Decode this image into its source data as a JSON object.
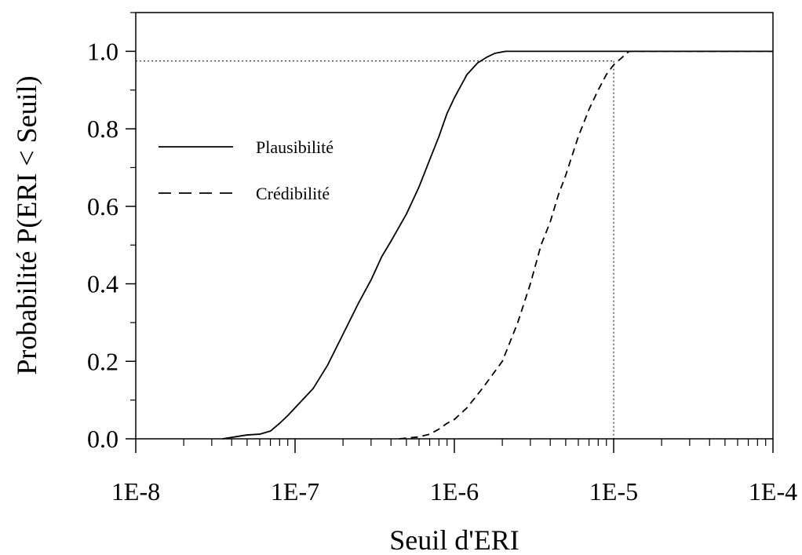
{
  "chart_data": {
    "type": "line",
    "title": "",
    "xlabel": "Seuil d'ERI",
    "ylabel": "Probabilité P(ERI < Seuil)",
    "xscale": "log",
    "xlim": [
      1e-08,
      0.0001
    ],
    "ylim": [
      0.0,
      1.1
    ],
    "x_tick_values": [
      1e-08,
      1e-07,
      1e-06,
      1e-05,
      0.0001
    ],
    "x_tick_labels": [
      "1E-8",
      "1E-7",
      "1E-6",
      "1E-5",
      "1E-4"
    ],
    "y_tick_values": [
      0.0,
      0.2,
      0.4,
      0.6,
      0.8,
      1.0
    ],
    "y_tick_labels": [
      "0.0",
      "0.2",
      "0.4",
      "0.6",
      "0.8",
      "1.0"
    ],
    "grid": false,
    "legend_position": "left",
    "series": [
      {
        "name": "Plausibilité",
        "style": "solid",
        "color": "#000000",
        "points": [
          [
            3.5e-08,
            0.0
          ],
          [
            5e-08,
            0.01
          ],
          [
            6e-08,
            0.012
          ],
          [
            7e-08,
            0.02
          ],
          [
            8e-08,
            0.04
          ],
          [
            9e-08,
            0.06
          ],
          [
            1e-07,
            0.08
          ],
          [
            1.3e-07,
            0.13
          ],
          [
            1.6e-07,
            0.19
          ],
          [
            2e-07,
            0.27
          ],
          [
            2.5e-07,
            0.35
          ],
          [
            3e-07,
            0.41
          ],
          [
            3.5e-07,
            0.47
          ],
          [
            4e-07,
            0.51
          ],
          [
            5e-07,
            0.58
          ],
          [
            6e-07,
            0.65
          ],
          [
            7e-07,
            0.72
          ],
          [
            8e-07,
            0.78
          ],
          [
            9e-07,
            0.84
          ],
          [
            1e-06,
            0.88
          ],
          [
            1.2e-06,
            0.94
          ],
          [
            1.4e-06,
            0.97
          ],
          [
            1.6e-06,
            0.985
          ],
          [
            1.8e-06,
            0.995
          ],
          [
            2.1e-06,
            1.0
          ],
          [
            0.0001,
            1.0
          ]
        ]
      },
      {
        "name": "Crédibilité",
        "style": "dashed",
        "color": "#000000",
        "points": [
          [
            4.5e-07,
            0.0
          ],
          [
            6e-07,
            0.005
          ],
          [
            7e-07,
            0.012
          ],
          [
            8e-07,
            0.025
          ],
          [
            9e-07,
            0.04
          ],
          [
            1e-06,
            0.05
          ],
          [
            1.2e-06,
            0.08
          ],
          [
            1.5e-06,
            0.13
          ],
          [
            2e-06,
            0.2
          ],
          [
            2.5e-06,
            0.3
          ],
          [
            3e-06,
            0.4
          ],
          [
            3.5e-06,
            0.5
          ],
          [
            4e-06,
            0.56
          ],
          [
            4.5e-06,
            0.63
          ],
          [
            5e-06,
            0.68
          ],
          [
            6e-06,
            0.78
          ],
          [
            7e-06,
            0.85
          ],
          [
            8e-06,
            0.9
          ],
          [
            9e-06,
            0.94
          ],
          [
            1e-05,
            0.965
          ],
          [
            1.1e-05,
            0.98
          ],
          [
            1.25e-05,
            1.0
          ],
          [
            0.0001,
            1.0
          ]
        ]
      }
    ],
    "reference_lines": {
      "color": "#000000",
      "style": "dotted",
      "x": 1e-05,
      "y": 0.975
    }
  }
}
